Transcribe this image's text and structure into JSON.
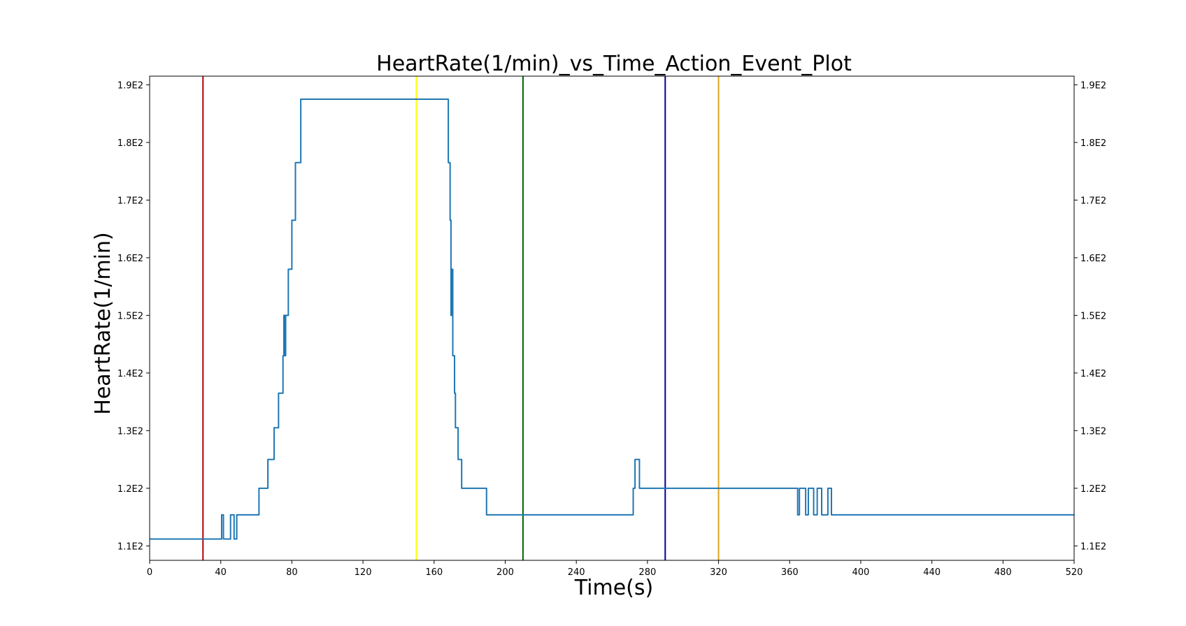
{
  "chart_data": {
    "type": "line",
    "title": "HeartRate(1/min)_vs_Time_Action_Event_Plot",
    "xlabel": "Time(s)",
    "ylabel": "HeartRate(1/min)",
    "xlim": [
      0,
      520
    ],
    "ylim": [
      107.5,
      191.5
    ],
    "xticks": [
      0,
      40,
      80,
      120,
      160,
      200,
      240,
      280,
      320,
      360,
      400,
      440,
      480,
      520
    ],
    "xtick_labels": [
      "0",
      "40",
      "80",
      "120",
      "160",
      "200",
      "240",
      "280",
      "320",
      "360",
      "400",
      "440",
      "480",
      "520"
    ],
    "yticks": [
      110,
      120,
      130,
      140,
      150,
      160,
      170,
      180,
      190
    ],
    "ytick_labels": [
      "1.1E2",
      "1.2E2",
      "1.3E2",
      "1.4E2",
      "1.5E2",
      "1.6E2",
      "1.7E2",
      "1.8E2",
      "1.9E2"
    ],
    "grid": false,
    "series": [
      {
        "color": "#1f77b4",
        "points": [
          [
            0,
            111.2
          ],
          [
            40.5,
            111.2
          ],
          [
            40.5,
            115.4
          ],
          [
            41.5,
            115.4
          ],
          [
            41.5,
            111.2
          ],
          [
            45.5,
            111.2
          ],
          [
            45.5,
            115.4
          ],
          [
            47.5,
            115.4
          ],
          [
            47.5,
            111.2
          ],
          [
            49,
            111.2
          ],
          [
            49,
            115.4
          ],
          [
            61.5,
            115.4
          ],
          [
            61.5,
            120
          ],
          [
            66.5,
            120
          ],
          [
            66.5,
            125
          ],
          [
            70,
            125
          ],
          [
            70,
            130.5
          ],
          [
            72.5,
            130.5
          ],
          [
            72.5,
            136.5
          ],
          [
            75,
            136.5
          ],
          [
            75,
            143
          ],
          [
            75.5,
            143
          ],
          [
            75.5,
            150
          ],
          [
            76,
            150
          ],
          [
            76,
            143
          ],
          [
            76.5,
            143
          ],
          [
            76.5,
            150
          ],
          [
            78,
            150
          ],
          [
            78,
            158
          ],
          [
            80,
            158
          ],
          [
            80,
            166.5
          ],
          [
            82,
            166.5
          ],
          [
            82,
            176.5
          ],
          [
            85,
            176.5
          ],
          [
            85,
            187.5
          ],
          [
            168,
            187.5
          ],
          [
            168,
            176.5
          ],
          [
            169,
            176.5
          ],
          [
            169,
            166.5
          ],
          [
            169.5,
            166.5
          ],
          [
            169.5,
            150
          ],
          [
            170,
            150
          ],
          [
            170,
            158
          ],
          [
            170.5,
            158
          ],
          [
            170.5,
            143
          ],
          [
            171.5,
            143
          ],
          [
            171.5,
            136.5
          ],
          [
            172,
            136.5
          ],
          [
            172,
            130.5
          ],
          [
            173.5,
            130.5
          ],
          [
            173.5,
            125
          ],
          [
            175.5,
            125
          ],
          [
            175.5,
            120
          ],
          [
            189.5,
            120
          ],
          [
            189.5,
            115.4
          ],
          [
            272,
            115.4
          ],
          [
            272,
            120
          ],
          [
            273,
            120
          ],
          [
            273,
            125
          ],
          [
            275.5,
            125
          ],
          [
            275.5,
            120
          ],
          [
            364.5,
            120
          ],
          [
            364.5,
            115.4
          ],
          [
            365.5,
            115.4
          ],
          [
            365.5,
            120
          ],
          [
            369,
            120
          ],
          [
            369,
            115.4
          ],
          [
            370.5,
            115.4
          ],
          [
            370.5,
            120
          ],
          [
            373.5,
            120
          ],
          [
            373.5,
            115.4
          ],
          [
            375.5,
            115.4
          ],
          [
            375.5,
            120
          ],
          [
            378,
            120
          ],
          [
            378,
            115.4
          ],
          [
            381.5,
            115.4
          ],
          [
            381.5,
            120
          ],
          [
            383.5,
            120
          ],
          [
            383.5,
            115.4
          ],
          [
            520,
            115.4
          ]
        ]
      }
    ],
    "event_lines": [
      {
        "x": 30,
        "color": "#b30000"
      },
      {
        "x": 150,
        "color": "#ffff00"
      },
      {
        "x": 210,
        "color": "#006400"
      },
      {
        "x": 290,
        "color": "#00008b"
      },
      {
        "x": 320,
        "color": "#daa520"
      }
    ]
  }
}
